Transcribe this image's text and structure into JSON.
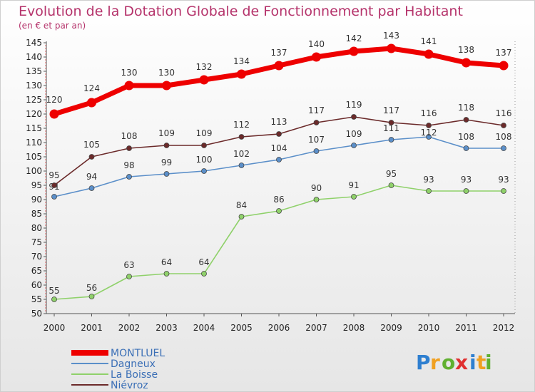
{
  "chart_data": {
    "type": "line",
    "title": "Evolution de la Dotation Globale de Fonctionnement par Habitant",
    "subtitle": "(en € et par an)",
    "xlabel": "",
    "ylabel": "",
    "categories": [
      "2000",
      "2001",
      "2002",
      "2003",
      "2004",
      "2005",
      "2006",
      "2007",
      "2008",
      "2009",
      "2010",
      "2011",
      "2012"
    ],
    "ylim": [
      50,
      145
    ],
    "yticks": [
      50,
      55,
      60,
      65,
      70,
      75,
      80,
      85,
      90,
      95,
      100,
      105,
      110,
      115,
      120,
      125,
      130,
      135,
      140,
      145
    ],
    "grid": false,
    "legend_position": "bottom-left",
    "series": [
      {
        "name": "MONTLUEL",
        "color": "#ee0000",
        "values": [
          120,
          124,
          130,
          130,
          132,
          134,
          137,
          140,
          142,
          143,
          141,
          138,
          137
        ]
      },
      {
        "name": "Dagneux",
        "color": "#5b8fc9",
        "values": [
          91,
          94,
          98,
          99,
          100,
          102,
          104,
          107,
          109,
          111,
          112,
          108,
          108
        ]
      },
      {
        "name": "La Boisse",
        "color": "#8fd16a",
        "values": [
          55,
          56,
          63,
          64,
          64,
          84,
          86,
          90,
          91,
          95,
          93,
          93,
          93
        ]
      },
      {
        "name": "Niévroz",
        "color": "#6b2a2a",
        "values": [
          95,
          105,
          108,
          109,
          109,
          112,
          113,
          117,
          119,
          117,
          116,
          118,
          116
        ]
      }
    ]
  },
  "brand": {
    "letters": [
      "P",
      "r",
      "o",
      "x",
      "i",
      "t",
      "i"
    ],
    "colors": [
      "#2e7fd0",
      "#f0a020",
      "#60b030",
      "#e03030",
      "#2e7fd0",
      "#f0a020",
      "#60b030"
    ]
  }
}
